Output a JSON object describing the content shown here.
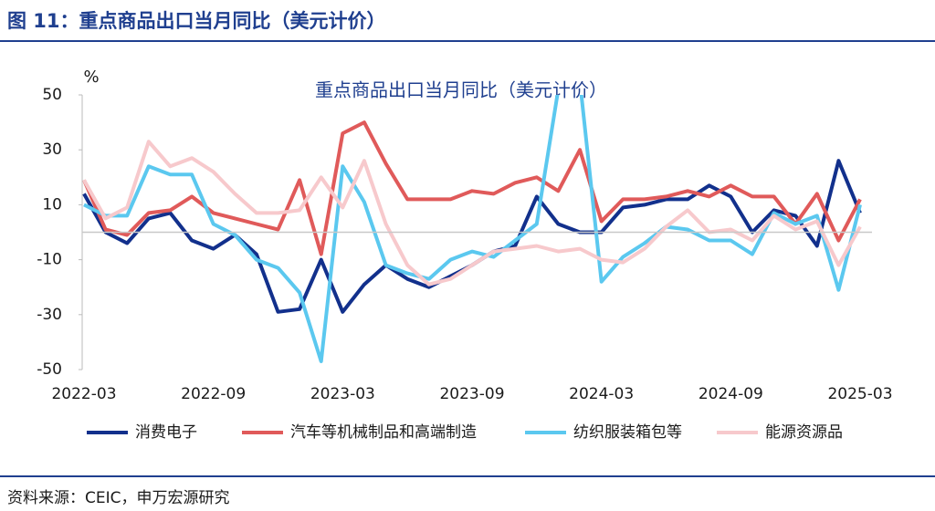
{
  "header": {
    "title": "图 11：重点商品出口当月同比（美元计价）"
  },
  "source": "资料来源：CEIC，申万宏源研究",
  "chart_data": {
    "type": "line",
    "title": "重点商品出口当月同比（美元计价）",
    "y_label": "%",
    "categories": [
      "2022-03",
      null,
      null,
      null,
      null,
      null,
      "2022-09",
      null,
      null,
      null,
      null,
      null,
      "2023-03",
      null,
      null,
      null,
      null,
      null,
      "2023-09",
      null,
      null,
      null,
      null,
      null,
      "2024-03",
      null,
      null,
      null,
      null,
      null,
      "2024-09",
      null,
      null,
      null,
      null,
      null,
      "2025-03"
    ],
    "ylim": [
      -50,
      50
    ],
    "yticks": [
      -50,
      -30,
      -10,
      10,
      30,
      50
    ],
    "zero_line": true,
    "series": [
      {
        "name": "消费电子",
        "color": "#12308c",
        "values": [
          14,
          0,
          -4,
          5,
          7,
          -3,
          -6,
          -1,
          -8,
          -29,
          -28,
          -10,
          -29,
          -19,
          -12,
          -17,
          -20,
          -16,
          -12,
          -7,
          -5,
          13,
          3,
          0,
          0,
          9,
          10,
          12,
          12,
          17,
          13,
          0,
          8,
          6,
          -5,
          26,
          7
        ]
      },
      {
        "name": "汽车等机械制品和高端制造",
        "color": "#e05a5a",
        "values": [
          19,
          1,
          -1,
          7,
          8,
          13,
          7,
          5,
          3,
          1,
          19,
          -8,
          36,
          40,
          25,
          12,
          12,
          12,
          15,
          14,
          18,
          20,
          15,
          30,
          4,
          12,
          12,
          13,
          15,
          13,
          17,
          13,
          13,
          3,
          14,
          -3,
          12
        ]
      },
      {
        "name": "纺织服装箱包等",
        "color": "#5bc8ef",
        "values": [
          10,
          6,
          6,
          24,
          21,
          21,
          3,
          -1,
          -10,
          -13,
          -22,
          -47,
          24,
          11,
          -12,
          -15,
          -17,
          -10,
          -7,
          -9,
          -3,
          3,
          52,
          55,
          -18,
          -9,
          -4,
          2,
          1,
          -3,
          -3,
          -8,
          7,
          3,
          6,
          -21,
          10
        ]
      },
      {
        "name": "能源资源品",
        "color": "#f7c9cc",
        "values": [
          19,
          5,
          9,
          33,
          24,
          27,
          22,
          14,
          7,
          7,
          8,
          20,
          9,
          26,
          3,
          -12,
          -19,
          -17,
          -12,
          -7,
          -6,
          -5,
          -7,
          -6,
          -10,
          -11,
          -6,
          2,
          8,
          0,
          1,
          -3,
          6,
          1,
          4,
          -12,
          2
        ]
      }
    ]
  }
}
